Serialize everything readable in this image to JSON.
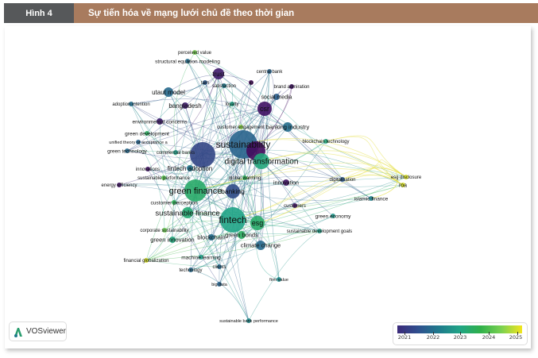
{
  "header": {
    "figure_number": "Hình 4",
    "title": "Sự tiến hóa về mạng lưới chủ đề theo thời gian"
  },
  "logo": {
    "text": "VOSviewer"
  },
  "legend": {
    "ticks": [
      "2021",
      "2022",
      "2023",
      "2024",
      "2025"
    ],
    "colors": [
      "#3b2a7a",
      "#1f7a8c",
      "#20a486",
      "#2fb04a",
      "#f2e51d"
    ]
  },
  "nodes": [
    {
      "label": "perceived value",
      "year": 2024.5
    },
    {
      "label": "structural equation modeling",
      "year": 2022.6
    },
    {
      "label": "trust",
      "year": 2021.3
    },
    {
      "label": "central bank",
      "year": 2022.4
    },
    {
      "label": "tam",
      "year": 2022.2
    },
    {
      "label": "satisfaction",
      "year": 2022.8
    },
    {
      "label": "ip",
      "year": 2021.1
    },
    {
      "label": "brand admiration",
      "year": 2021.2
    },
    {
      "label": "utaut model",
      "year": 2022.5
    },
    {
      "label": "social media",
      "year": 2022.3
    },
    {
      "label": "adoption intention",
      "year": 2022.6
    },
    {
      "label": "bangladesh",
      "year": 2021.3
    },
    {
      "label": "loyalty",
      "year": 2023.4
    },
    {
      "label": "csr",
      "year": 2021.2
    },
    {
      "label": "environmental concerns",
      "year": 2021.3
    },
    {
      "label": "customer engagement",
      "year": 2024.6
    },
    {
      "label": "banking industry",
      "year": 2022.6
    },
    {
      "label": "green development",
      "year": 2023.8
    },
    {
      "label": "unified theory of acceptance a",
      "year": 2022.4
    },
    {
      "label": "sustainability",
      "year": 2022.4
    },
    {
      "label": "blockchain technology",
      "year": 2023.5
    },
    {
      "label": "green technology",
      "year": 2022.5
    },
    {
      "label": "commercial banks",
      "year": 2023.3
    },
    {
      "label": "",
      "year": 2021.9
    },
    {
      "label": "",
      "year": 2021.1
    },
    {
      "label": "digital transformation",
      "year": 2023.5
    },
    {
      "label": "innovations",
      "year": 2021.2
    },
    {
      "label": "fintech adoption",
      "year": 2022.7
    },
    {
      "label": "sustainable performance",
      "year": 2024.3
    },
    {
      "label": "global warming",
      "year": 2023.9
    },
    {
      "label": "innovation",
      "year": 2021.2
    },
    {
      "label": "digitalisation",
      "year": 2022.2
    },
    {
      "label": "esg disclosure",
      "year": 2024.9
    },
    {
      "label": "roa",
      "year": 2024.9
    },
    {
      "label": "islamic finance",
      "year": 2022.9
    },
    {
      "label": "energy efficiency",
      "year": 2021.2
    },
    {
      "label": "green finance",
      "year": 2023.7
    },
    {
      "label": "banking",
      "year": 2022.0
    },
    {
      "label": "customer perception",
      "year": 2023.9
    },
    {
      "label": "customers",
      "year": 2021.2
    },
    {
      "label": "sustainable finance",
      "year": 2023.6
    },
    {
      "label": "green economy",
      "year": 2023.2
    },
    {
      "label": "fintech",
      "year": 2023.4
    },
    {
      "label": "esg",
      "year": 2023.7
    },
    {
      "label": "corporate sustainability",
      "year": 2024.4
    },
    {
      "label": "green innovation",
      "year": 2023.5
    },
    {
      "label": "blockchain",
      "year": 2022.6
    },
    {
      "label": "green bonds",
      "year": 2023.8
    },
    {
      "label": "sustainable development goals",
      "year": 2023.3
    },
    {
      "label": "climate change",
      "year": 2022.5
    },
    {
      "label": "financial globalization",
      "year": 2024.9
    },
    {
      "label": "machine learning",
      "year": 2023.3
    },
    {
      "label": "clients",
      "year": 2022.5
    },
    {
      "label": "technology",
      "year": 2022.5
    },
    {
      "label": "big data",
      "year": 2022.4
    },
    {
      "label": "firm value",
      "year": 2023.0
    },
    {
      "label": "sustainable bank performance",
      "year": 2023.0
    }
  ]
}
